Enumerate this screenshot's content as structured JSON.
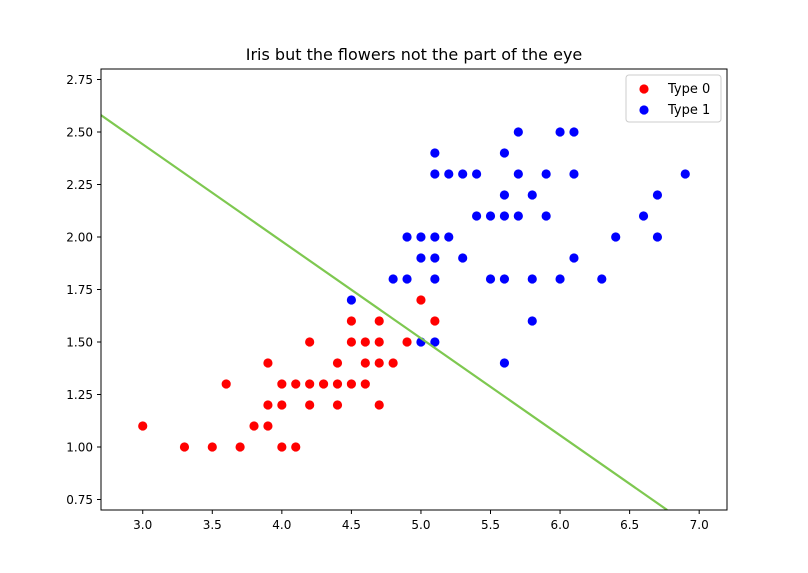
{
  "chart_data": {
    "type": "scatter",
    "title": "Iris but the flowers not the part of the eye",
    "xlabel": "",
    "ylabel": "",
    "xlim": [
      2.7,
      7.2
    ],
    "ylim": [
      0.7,
      2.8
    ],
    "xticks": [
      3.0,
      3.5,
      4.0,
      4.5,
      5.0,
      5.5,
      6.0,
      6.5,
      7.0
    ],
    "xtick_labels": [
      "3.0",
      "3.5",
      "4.0",
      "4.5",
      "5.0",
      "5.5",
      "6.0",
      "6.5",
      "7.0"
    ],
    "yticks": [
      0.75,
      1.0,
      1.25,
      1.5,
      1.75,
      2.0,
      2.25,
      2.5,
      2.75
    ],
    "ytick_labels": [
      "0.75",
      "1.00",
      "1.25",
      "1.50",
      "1.75",
      "2.00",
      "2.25",
      "2.50",
      "2.75"
    ],
    "grid": false,
    "legend_position": "top-right",
    "series": [
      {
        "name": "Type 0",
        "color": "#ff0000",
        "points": [
          [
            3.0,
            1.1
          ],
          [
            3.3,
            1.0
          ],
          [
            3.5,
            1.0
          ],
          [
            3.6,
            1.3
          ],
          [
            3.7,
            1.0
          ],
          [
            3.8,
            1.1
          ],
          [
            3.9,
            1.1
          ],
          [
            3.9,
            1.2
          ],
          [
            3.9,
            1.4
          ],
          [
            4.0,
            1.0
          ],
          [
            4.0,
            1.2
          ],
          [
            4.0,
            1.3
          ],
          [
            4.1,
            1.0
          ],
          [
            4.1,
            1.3
          ],
          [
            4.2,
            1.2
          ],
          [
            4.2,
            1.3
          ],
          [
            4.2,
            1.5
          ],
          [
            4.3,
            1.3
          ],
          [
            4.4,
            1.2
          ],
          [
            4.4,
            1.3
          ],
          [
            4.4,
            1.4
          ],
          [
            4.5,
            1.3
          ],
          [
            4.5,
            1.5
          ],
          [
            4.5,
            1.6
          ],
          [
            4.6,
            1.3
          ],
          [
            4.6,
            1.4
          ],
          [
            4.6,
            1.5
          ],
          [
            4.7,
            1.2
          ],
          [
            4.7,
            1.4
          ],
          [
            4.7,
            1.5
          ],
          [
            4.7,
            1.6
          ],
          [
            4.8,
            1.4
          ],
          [
            4.9,
            1.5
          ],
          [
            5.0,
            1.7
          ],
          [
            5.1,
            1.6
          ]
        ]
      },
      {
        "name": "Type 1",
        "color": "#0000ff",
        "points": [
          [
            4.5,
            1.7
          ],
          [
            4.8,
            1.8
          ],
          [
            4.9,
            1.8
          ],
          [
            4.9,
            2.0
          ],
          [
            5.0,
            1.5
          ],
          [
            5.0,
            1.9
          ],
          [
            5.0,
            2.0
          ],
          [
            5.1,
            1.5
          ],
          [
            5.1,
            1.8
          ],
          [
            5.1,
            1.9
          ],
          [
            5.1,
            2.0
          ],
          [
            5.1,
            2.3
          ],
          [
            5.1,
            2.4
          ],
          [
            5.2,
            2.0
          ],
          [
            5.2,
            2.3
          ],
          [
            5.3,
            1.9
          ],
          [
            5.3,
            2.3
          ],
          [
            5.4,
            2.1
          ],
          [
            5.4,
            2.3
          ],
          [
            5.5,
            1.8
          ],
          [
            5.5,
            2.1
          ],
          [
            5.6,
            1.4
          ],
          [
            5.6,
            1.8
          ],
          [
            5.6,
            2.1
          ],
          [
            5.6,
            2.2
          ],
          [
            5.6,
            2.4
          ],
          [
            5.7,
            2.1
          ],
          [
            5.7,
            2.3
          ],
          [
            5.7,
            2.5
          ],
          [
            5.8,
            1.6
          ],
          [
            5.8,
            1.8
          ],
          [
            5.8,
            2.2
          ],
          [
            5.9,
            2.1
          ],
          [
            5.9,
            2.3
          ],
          [
            6.0,
            1.8
          ],
          [
            6.0,
            2.5
          ],
          [
            6.1,
            1.9
          ],
          [
            6.1,
            2.3
          ],
          [
            6.1,
            2.5
          ],
          [
            6.3,
            1.8
          ],
          [
            6.4,
            2.0
          ],
          [
            6.6,
            2.1
          ],
          [
            6.7,
            2.0
          ],
          [
            6.7,
            2.2
          ],
          [
            6.9,
            2.3
          ]
        ]
      }
    ],
    "decision_line": {
      "color": "#7ec850",
      "points": [
        [
          2.7,
          2.58
        ],
        [
          6.77,
          0.7
        ]
      ]
    }
  }
}
